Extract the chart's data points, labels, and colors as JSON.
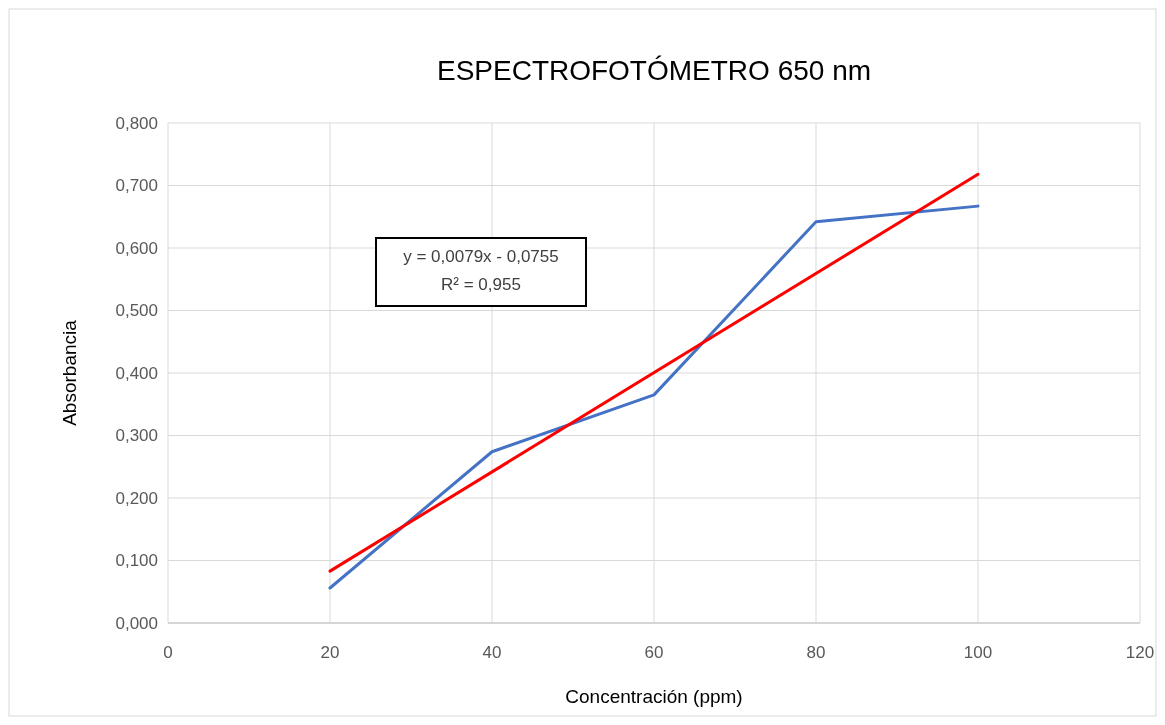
{
  "chart_data": {
    "type": "line",
    "title": "ESPECTROFOTÓMETRO 650 nm",
    "xlabel": "Concentración (ppm)",
    "ylabel": "Absorbancia",
    "x": [
      20,
      40,
      60,
      80,
      100
    ],
    "series": [
      {
        "color": "#4472c4",
        "values": [
          0.056,
          0.274,
          0.365,
          0.642,
          0.667
        ]
      },
      {
        "type": "line",
        "color": "#ff0000",
        "x": [
          20,
          100
        ],
        "values": [
          0.083,
          0.718
        ]
      }
    ],
    "xlim": [
      0,
      120
    ],
    "xticks": [
      0,
      20,
      40,
      60,
      80,
      100,
      120
    ],
    "ylim": [
      0,
      0.8
    ],
    "yticks": [
      {
        "value": 0,
        "label": "0,000"
      },
      {
        "value": 0.1,
        "label": "0,100"
      },
      {
        "value": 0.2,
        "label": "0,200"
      },
      {
        "value": 0.3,
        "label": "0,300"
      },
      {
        "value": 0.4,
        "label": "0,400"
      },
      {
        "value": 0.5,
        "label": "0,500"
      },
      {
        "value": 0.6,
        "label": "0,600"
      },
      {
        "value": 0.7,
        "label": "0,700"
      },
      {
        "value": 0.8,
        "label": "0,800"
      }
    ],
    "grid": true,
    "annotations": [
      "y = 0,0079x - 0,0755",
      "R² = 0,955"
    ]
  }
}
